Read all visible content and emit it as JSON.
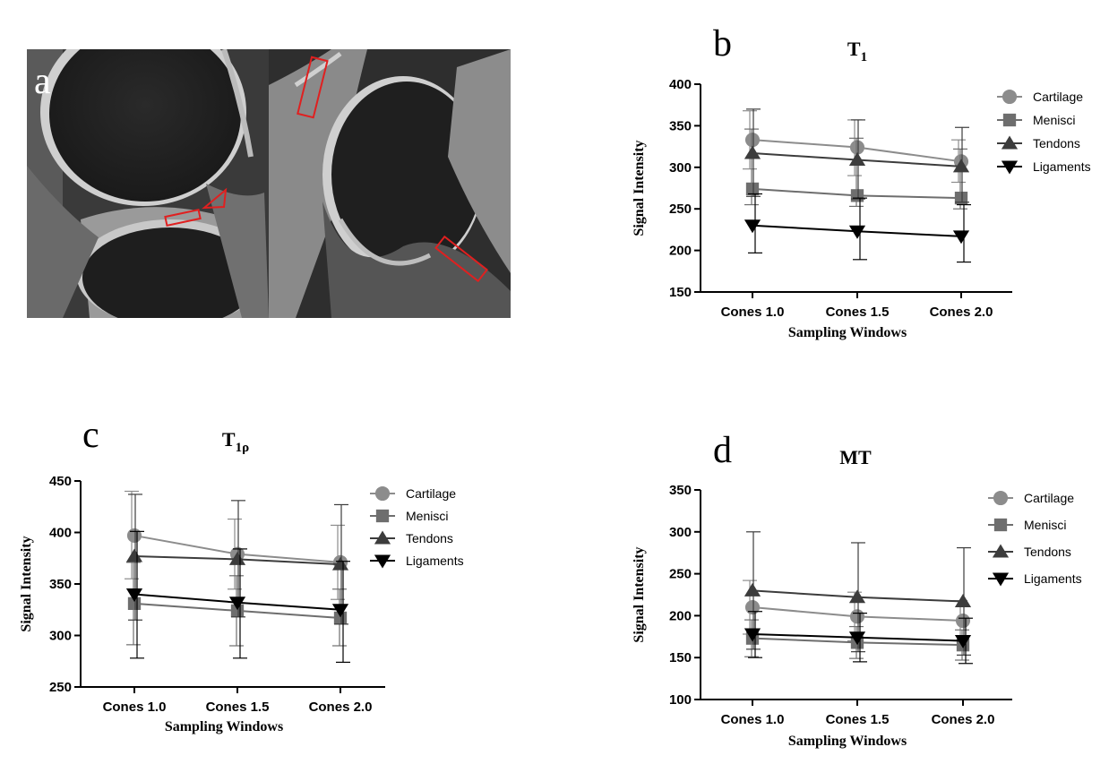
{
  "panel_a": {
    "letter": "a",
    "roi_color": "#e02020",
    "image_content": "two sagittal knee MRI slices with red ROI markers"
  },
  "colors": {
    "Cartilage": "#8c8c8c",
    "Menisci": "#6e6e6e",
    "Tendons": "#3c3c3c",
    "Ligaments": "#000000"
  },
  "chart_data": [
    {
      "panel": "b",
      "type": "line",
      "title_main": "T",
      "title_sub": "1",
      "xlabel": "Sampling Windows",
      "ylabel": "Signal Intensity",
      "categories": [
        "Cones 1.0",
        "Cones 1.5",
        "Cones 2.0"
      ],
      "ylim": [
        150,
        400
      ],
      "yticks": [
        150,
        200,
        250,
        300,
        350,
        400
      ],
      "legend_position": "right",
      "series": [
        {
          "name": "Cartilage",
          "marker": "circle",
          "values": [
            333,
            324,
            307
          ],
          "err_low": [
            298,
            290,
            282
          ],
          "err_high": [
            368,
            357,
            333
          ]
        },
        {
          "name": "Menisci",
          "marker": "square",
          "values": [
            274,
            266,
            263
          ],
          "err_low": [
            255,
            253,
            250
          ],
          "err_high": [
            346,
            335,
            322
          ]
        },
        {
          "name": "Tendons",
          "marker": "triangle-up",
          "values": [
            317,
            309,
            301
          ],
          "err_low": [
            265,
            262,
            258
          ],
          "err_high": [
            370,
            357,
            348
          ]
        },
        {
          "name": "Ligaments",
          "marker": "triangle-down",
          "values": [
            230,
            223,
            217
          ],
          "err_low": [
            197,
            189,
            186
          ],
          "err_high": [
            268,
            263,
            255
          ]
        }
      ]
    },
    {
      "panel": "c",
      "type": "line",
      "title_main": "T",
      "title_sub": "1ρ",
      "xlabel": "Sampling Windows",
      "ylabel": "Signal Intensity",
      "categories": [
        "Cones 1.0",
        "Cones 1.5",
        "Cones 2.0"
      ],
      "ylim": [
        250,
        450
      ],
      "yticks": [
        250,
        300,
        350,
        400,
        450
      ],
      "legend_position": "right",
      "series": [
        {
          "name": "Cartilage",
          "marker": "circle",
          "values": [
            397,
            379,
            371
          ],
          "err_low": [
            355,
            345,
            335
          ],
          "err_high": [
            440,
            413,
            407
          ]
        },
        {
          "name": "Menisci",
          "marker": "square",
          "values": [
            331,
            324,
            317
          ],
          "err_low": [
            291,
            290,
            290
          ],
          "err_high": [
            371,
            358,
            345
          ]
        },
        {
          "name": "Tendons",
          "marker": "triangle-up",
          "values": [
            377,
            374,
            369
          ],
          "err_low": [
            315,
            318,
            311
          ],
          "err_high": [
            437,
            431,
            427
          ]
        },
        {
          "name": "Ligaments",
          "marker": "triangle-down",
          "values": [
            340,
            332,
            325
          ],
          "err_low": [
            278,
            278,
            274
          ],
          "err_high": [
            401,
            384,
            372
          ]
        }
      ]
    },
    {
      "panel": "d",
      "type": "line",
      "title_main": "MT",
      "title_sub": "",
      "xlabel": "Sampling Windows",
      "ylabel": "Signal Intensity",
      "categories": [
        "Cones 1.0",
        "Cones 1.5",
        "Cones 2.0"
      ],
      "ylim": [
        100,
        350
      ],
      "yticks": [
        100,
        150,
        200,
        250,
        300,
        350
      ],
      "legend_position": "right",
      "series": [
        {
          "name": "Cartilage",
          "marker": "circle",
          "values": [
            210,
            199,
            194
          ],
          "err_low": [
            178,
            170,
            170
          ],
          "err_high": [
            242,
            228,
            218
          ]
        },
        {
          "name": "Menisci",
          "marker": "square",
          "values": [
            173,
            168,
            165
          ],
          "err_low": [
            151,
            149,
            147
          ],
          "err_high": [
            195,
            187,
            183
          ]
        },
        {
          "name": "Tendons",
          "marker": "triangle-up",
          "values": [
            230,
            222,
            217
          ],
          "err_low": [
            160,
            157,
            153
          ],
          "err_high": [
            300,
            287,
            281
          ]
        },
        {
          "name": "Ligaments",
          "marker": "triangle-down",
          "values": [
            178,
            174,
            170
          ],
          "err_low": [
            150,
            145,
            143
          ],
          "err_high": [
            205,
            203,
            197
          ]
        }
      ]
    }
  ]
}
